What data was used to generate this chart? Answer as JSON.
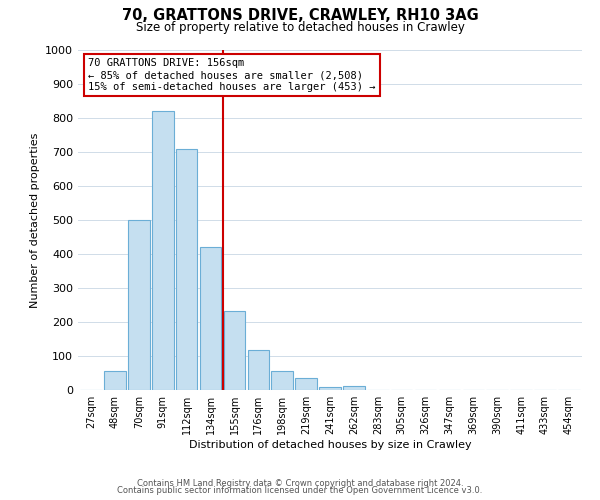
{
  "title": "70, GRATTONS DRIVE, CRAWLEY, RH10 3AG",
  "subtitle": "Size of property relative to detached houses in Crawley",
  "xlabel": "Distribution of detached houses by size in Crawley",
  "ylabel": "Number of detached properties",
  "bar_labels": [
    "27sqm",
    "48sqm",
    "70sqm",
    "91sqm",
    "112sqm",
    "134sqm",
    "155sqm",
    "176sqm",
    "198sqm",
    "219sqm",
    "241sqm",
    "262sqm",
    "283sqm",
    "305sqm",
    "326sqm",
    "347sqm",
    "369sqm",
    "390sqm",
    "411sqm",
    "433sqm",
    "454sqm"
  ],
  "bar_values": [
    0,
    57,
    500,
    820,
    710,
    420,
    233,
    118,
    57,
    35,
    10,
    12,
    0,
    0,
    0,
    0,
    0,
    0,
    0,
    0,
    0
  ],
  "bar_color": "#c5dff0",
  "bar_edge_color": "#6baed6",
  "vline_color": "#cc0000",
  "ylim": [
    0,
    1000
  ],
  "annotation_text": "70 GRATTONS DRIVE: 156sqm\n← 85% of detached houses are smaller (2,508)\n15% of semi-detached houses are larger (453) →",
  "annotation_box_edgecolor": "#cc0000",
  "footer_line1": "Contains HM Land Registry data © Crown copyright and database right 2024.",
  "footer_line2": "Contains public sector information licensed under the Open Government Licence v3.0.",
  "background_color": "#ffffff",
  "grid_color": "#d0dce8"
}
